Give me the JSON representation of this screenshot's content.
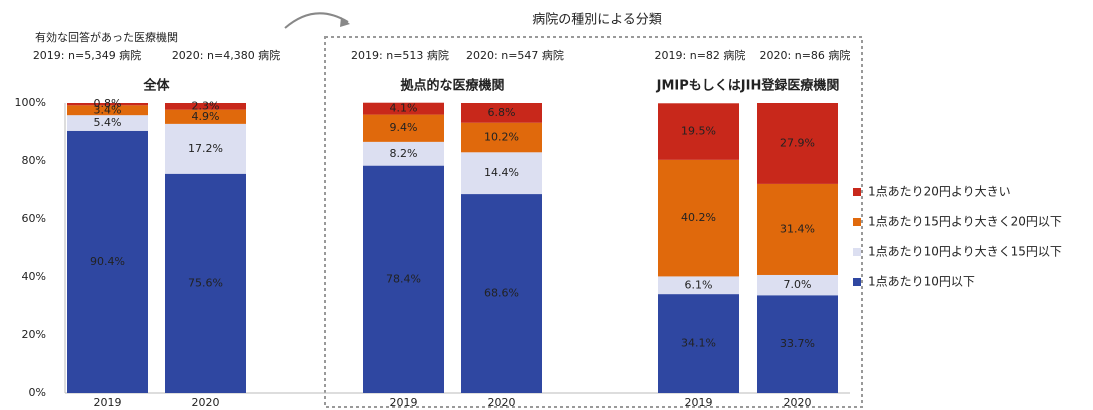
{
  "chart_data": {
    "type": "stacked_bar",
    "header": "有効な回答があった医療機関",
    "annotation": "病院の種別による分類",
    "ylim": [
      0,
      100
    ],
    "yticks": [
      {
        "value": 0,
        "label": "0%"
      },
      {
        "value": 20,
        "label": "20%"
      },
      {
        "value": 40,
        "label": "40%"
      },
      {
        "value": 60,
        "label": "60%"
      },
      {
        "value": 80,
        "label": "80%"
      },
      {
        "value": 100,
        "label": "100%"
      }
    ],
    "grid": false,
    "legend": "right",
    "series": [
      {
        "name": "1点あたり10円以下",
        "color": "#2f47a1"
      },
      {
        "name": "1点あたり10円より大きく15円以下",
        "color": "#dcdff1"
      },
      {
        "name": "1点あたり15円より大きく20円以下",
        "color": "#e0690c"
      },
      {
        "name": "1点あたり20円より大きい",
        "color": "#c8281b"
      }
    ],
    "panels": [
      {
        "title": "全体",
        "notes": [
          "2019: n=5,349 病院",
          "2020: n=4,380 病院"
        ],
        "categories": [
          "2019",
          "2020"
        ],
        "values": [
          [
            90.4,
            75.6
          ],
          [
            5.4,
            17.2
          ],
          [
            3.4,
            4.9
          ],
          [
            0.8,
            2.3
          ]
        ],
        "value_labels": [
          [
            "90.4%",
            "75.6%"
          ],
          [
            "5.4%",
            "17.2%"
          ],
          [
            "3.4%",
            "4.9%"
          ],
          [
            "0.8%",
            "2.3%"
          ]
        ]
      },
      {
        "title": "拠点的な医療機関",
        "notes": [
          "2019: n=513 病院",
          "2020: n=547 病院"
        ],
        "categories": [
          "2019",
          "2020"
        ],
        "values": [
          [
            78.4,
            68.6
          ],
          [
            8.2,
            14.4
          ],
          [
            9.4,
            10.2
          ],
          [
            4.1,
            6.8
          ]
        ],
        "value_labels": [
          [
            "78.4%",
            "68.6%"
          ],
          [
            "8.2%",
            "14.4%"
          ],
          [
            "9.4%",
            "10.2%"
          ],
          [
            "4.1%",
            "6.8%"
          ]
        ]
      },
      {
        "title": "JMIPもしくはJIH登録医療機関",
        "notes": [
          "2019: n=82 病院",
          "2020: n=86 病院"
        ],
        "categories": [
          "2019",
          "2020"
        ],
        "values": [
          [
            34.1,
            33.7
          ],
          [
            6.1,
            7.0
          ],
          [
            40.2,
            31.4
          ],
          [
            19.5,
            27.9
          ]
        ],
        "value_labels": [
          [
            "34.1%",
            "33.7%"
          ],
          [
            "6.1%",
            "7.0%"
          ],
          [
            "40.2%",
            "31.4%"
          ],
          [
            "19.5%",
            "27.9%"
          ]
        ]
      }
    ]
  }
}
